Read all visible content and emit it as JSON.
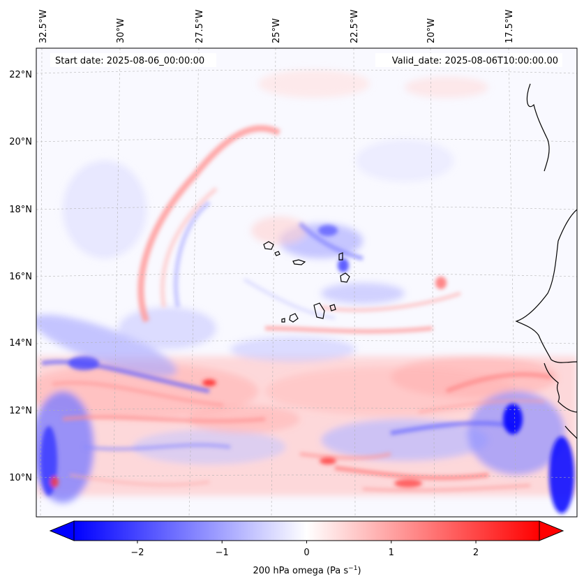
{
  "header": {
    "start_date": "Start date: 2025-08-06_00:00:00",
    "valid_date": "Valid_date: 2025-08-06T10:00:00.00"
  },
  "map": {
    "lon_labels": [
      "32.5°W",
      "30°W",
      "27.5°W",
      "25°W",
      "22.5°W",
      "20°W",
      "17.5°W"
    ],
    "lat_labels": [
      "22°N",
      "20°N",
      "18°N",
      "16°N",
      "14°N",
      "12°N",
      "10°N"
    ],
    "field_colors": {
      "negative": "#0000ff",
      "zero": "#ffffff",
      "positive": "#ff0000"
    }
  },
  "colorbar": {
    "ticks": [
      "−2",
      "−1",
      "0",
      "1",
      "2"
    ],
    "tick_values": [
      -2,
      -1,
      0,
      1,
      2
    ],
    "range": [
      -2.75,
      2.75
    ],
    "label_main": "200 hPa omega (Pa s",
    "label_sup": "−1",
    "label_end": ")",
    "extend": "both"
  }
}
